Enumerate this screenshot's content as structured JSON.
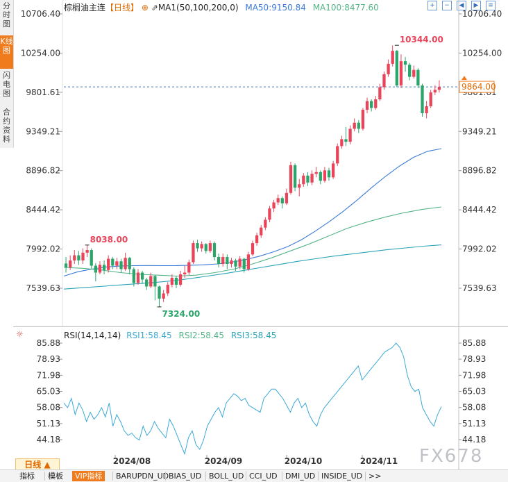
{
  "sidebar": {
    "tabs": [
      {
        "label": "分时图",
        "active": false
      },
      {
        "label": "K线图",
        "active": true
      },
      {
        "label": "闪电图",
        "active": false
      },
      {
        "label": "合约资料",
        "active": false
      }
    ]
  },
  "header": {
    "instrument": "棕榈油主连",
    "period_tag": "【日线】",
    "ma_label": "MA1(50,100,200,0)",
    "ma50_label": "MA50:9150.84",
    "ma100_label": "MA100:8477.60"
  },
  "toolbar_icons": [
    "zoom-in-icon",
    "zoom-out-icon",
    "left-icon",
    "right-icon",
    "settings-icon"
  ],
  "rsi_header": {
    "title": "RSI(14,14,14)",
    "rsi1": "RSI1:58.45",
    "rsi2": "RSI2:58.45",
    "rsi3": "RSI3:58.45"
  },
  "x_axis_labels": [
    "2024/08",
    "2024/09",
    "2024/10",
    "2024/11"
  ],
  "bottom_bar": {
    "period_label": "日线 ▲",
    "items": [
      "指标",
      "模板",
      "VIP指标",
      "BARUPDN_UD",
      "BIAS_UD",
      "BOLL_UD",
      "CCI_UD",
      "DMI_UD",
      "INSIDE_UD",
      ">>"
    ]
  },
  "watermark": "FX678",
  "colors": {
    "up": "#e8445a",
    "down": "#2ca56a",
    "ma50": "#3b7bd8",
    "ma100": "#54b487",
    "ma200": "#2aa3b8",
    "accent": "#f07b1c"
  },
  "chart_data": [
    {
      "type": "candlestick",
      "title": "棕榈油主连 日线",
      "y_ticks": [
        "10706.40",
        "10254.00",
        "9801.61",
        "9349.21",
        "8896.82",
        "8444.42",
        "7992.02",
        "7539.63"
      ],
      "ylim": [
        7300,
        10790
      ],
      "current_price_label": "9864.00",
      "current_price": 9864.0,
      "annotations": [
        {
          "label": "10344.00",
          "value": 10344.0,
          "at_index": 78
        },
        {
          "label": "8038.00",
          "value": 8038.0,
          "at_index": 5
        },
        {
          "label": "7324.00",
          "value": 7324.0,
          "at_index": 22
        }
      ],
      "candles": [
        [
          7825,
          7780,
          7900,
          7720
        ],
        [
          7780,
          7860,
          7920,
          7750
        ],
        [
          7860,
          7920,
          7980,
          7820
        ],
        [
          7920,
          7860,
          7970,
          7810
        ],
        [
          7860,
          7950,
          8000,
          7820
        ],
        [
          7950,
          7980,
          8038,
          7900
        ],
        [
          7980,
          7800,
          8000,
          7760
        ],
        [
          7800,
          7720,
          7830,
          7620
        ],
        [
          7720,
          7810,
          7850,
          7700
        ],
        [
          7810,
          7750,
          7860,
          7700
        ],
        [
          7750,
          7880,
          7920,
          7720
        ],
        [
          7880,
          7800,
          7900,
          7760
        ],
        [
          7800,
          7850,
          7890,
          7760
        ],
        [
          7850,
          7760,
          7880,
          7720
        ],
        [
          7760,
          7890,
          7950,
          7740
        ],
        [
          7890,
          7760,
          7900,
          7700
        ],
        [
          7760,
          7600,
          7780,
          7560
        ],
        [
          7600,
          7720,
          7760,
          7580
        ],
        [
          7720,
          7640,
          7740,
          7590
        ],
        [
          7640,
          7560,
          7660,
          7520
        ],
        [
          7560,
          7680,
          7720,
          7540
        ],
        [
          7680,
          7560,
          7690,
          7400
        ],
        [
          7560,
          7420,
          7570,
          7324
        ],
        [
          7420,
          7480,
          7520,
          7380
        ],
        [
          7480,
          7580,
          7610,
          7450
        ],
        [
          7580,
          7660,
          7700,
          7550
        ],
        [
          7660,
          7580,
          7680,
          7540
        ],
        [
          7580,
          7700,
          7740,
          7560
        ],
        [
          7700,
          7720,
          7800,
          7660
        ],
        [
          7720,
          7840,
          7870,
          7690
        ],
        [
          7840,
          8060,
          8090,
          7820
        ],
        [
          8060,
          8000,
          8100,
          7960
        ],
        [
          8000,
          8050,
          8080,
          7960
        ],
        [
          8050,
          7970,
          8060,
          7940
        ],
        [
          7970,
          8060,
          8090,
          7950
        ],
        [
          8060,
          7900,
          8080,
          7860
        ],
        [
          7900,
          7820,
          7940,
          7780
        ],
        [
          7820,
          7900,
          7940,
          7790
        ],
        [
          7900,
          7820,
          7930,
          7760
        ],
        [
          7820,
          7860,
          7890,
          7780
        ],
        [
          7860,
          7790,
          7880,
          7740
        ],
        [
          7790,
          7880,
          7910,
          7760
        ],
        [
          7880,
          7760,
          7890,
          7720
        ],
        [
          7760,
          7930,
          7960,
          7740
        ],
        [
          7930,
          8060,
          8090,
          7910
        ],
        [
          8060,
          8150,
          8180,
          8030
        ],
        [
          8150,
          8240,
          8270,
          8120
        ],
        [
          8240,
          8330,
          8360,
          8210
        ],
        [
          8330,
          8460,
          8490,
          8300
        ],
        [
          8460,
          8530,
          8560,
          8420
        ],
        [
          8530,
          8580,
          8620,
          8500
        ],
        [
          8580,
          8520,
          8600,
          8460
        ],
        [
          8520,
          8640,
          8690,
          8500
        ],
        [
          8640,
          8960,
          9000,
          8620
        ],
        [
          8960,
          8700,
          8980,
          8660
        ],
        [
          8700,
          8740,
          8800,
          8600
        ],
        [
          8740,
          8840,
          8870,
          8710
        ],
        [
          8840,
          8760,
          8880,
          8720
        ],
        [
          8760,
          8860,
          8900,
          8730
        ],
        [
          8860,
          8880,
          8940,
          8820
        ],
        [
          8880,
          8780,
          8900,
          8740
        ],
        [
          8780,
          8900,
          8940,
          8760
        ],
        [
          8900,
          8820,
          8930,
          8780
        ],
        [
          8820,
          8980,
          9010,
          8800
        ],
        [
          8980,
          9180,
          9210,
          8950
        ],
        [
          9180,
          9260,
          9300,
          9150
        ],
        [
          9260,
          9230,
          9400,
          9180
        ],
        [
          9230,
          9380,
          9420,
          9200
        ],
        [
          9380,
          9450,
          9500,
          9350
        ],
        [
          9450,
          9380,
          9480,
          9330
        ],
        [
          9380,
          9600,
          9620,
          9360
        ],
        [
          9600,
          9700,
          9740,
          9560
        ],
        [
          9700,
          9620,
          9720,
          9580
        ],
        [
          9620,
          9720,
          9760,
          9600
        ],
        [
          9720,
          9860,
          9900,
          9700
        ],
        [
          9860,
          10010,
          10040,
          9830
        ],
        [
          10010,
          10130,
          10180,
          9980
        ],
        [
          10130,
          10280,
          10344,
          10100
        ],
        [
          10280,
          9880,
          10290,
          9860
        ],
        [
          9880,
          10160,
          10240,
          9850
        ],
        [
          10160,
          10120,
          10210,
          10040
        ],
        [
          10120,
          9980,
          10140,
          9940
        ],
        [
          9980,
          10060,
          10110,
          9960
        ],
        [
          10060,
          9880,
          10080,
          9850
        ],
        [
          9880,
          9560,
          9900,
          9520
        ],
        [
          9560,
          9640,
          9700,
          9500
        ],
        [
          9640,
          9800,
          9830,
          9620
        ],
        [
          9800,
          9830,
          9880,
          9770
        ],
        [
          9830,
          9864,
          9940,
          9800
        ]
      ],
      "ma_series": [
        {
          "name": "MA50",
          "color": "#3b7bd8",
          "values": [
            7680,
            7730,
            7760,
            7785,
            7795,
            7800,
            7802,
            7800,
            7800,
            7805,
            7810,
            7820,
            7840,
            7870,
            7910,
            7960,
            8020,
            8100,
            8200,
            8310,
            8430,
            8560,
            8700,
            8830,
            8950,
            9050,
            9120,
            9150.84
          ]
        },
        {
          "name": "MA100",
          "color": "#54b487",
          "values": [
            7780,
            7770,
            7750,
            7720,
            7700,
            7690,
            7680,
            7690,
            7720,
            7760,
            7820,
            7890,
            7970,
            8050,
            8140,
            8230,
            8300,
            8360,
            8410,
            8450,
            8477.6
          ]
        },
        {
          "name": "MA200",
          "color": "#2aa3b8",
          "values": [
            7530,
            7545,
            7560,
            7575,
            7590,
            7605,
            7625,
            7650,
            7680,
            7710,
            7745,
            7780,
            7815,
            7850,
            7880,
            7910,
            7935,
            7960,
            7985,
            8005,
            8025,
            8040
          ]
        }
      ],
      "x_labels": [
        "2024/08",
        "2024/09",
        "2024/10",
        "2024/11"
      ]
    },
    {
      "type": "line",
      "title": "RSI(14,14,14)",
      "y_ticks": [
        "85.88",
        "78.93",
        "71.98",
        "65.03",
        "58.08",
        "51.13",
        "44.18"
      ],
      "ylim": [
        40,
        88.5
      ],
      "series": [
        {
          "name": "RSI1",
          "color": "#3ba8d8",
          "values": [
            60,
            58,
            62,
            55,
            60,
            57,
            52,
            56,
            53,
            55,
            58,
            54,
            60,
            50,
            55,
            52,
            48,
            46,
            47,
            45,
            44,
            50,
            46,
            48,
            52,
            49,
            47,
            45,
            53,
            50,
            46,
            42,
            38,
            45,
            48,
            42,
            40,
            44,
            50,
            53,
            56,
            58,
            54,
            60,
            62,
            64,
            63,
            61,
            62,
            59,
            58,
            57,
            56,
            62,
            64,
            66,
            66,
            64,
            62,
            59,
            56,
            60,
            62,
            58,
            60,
            55,
            52,
            50,
            55,
            58,
            60,
            62,
            64,
            66,
            68,
            70,
            72,
            74,
            76,
            70,
            72,
            74,
            76,
            78,
            80,
            82,
            83,
            84,
            85.88,
            84,
            80,
            72,
            67,
            65,
            66,
            58,
            55,
            52,
            50,
            55,
            58.45
          ]
        }
      ]
    }
  ]
}
